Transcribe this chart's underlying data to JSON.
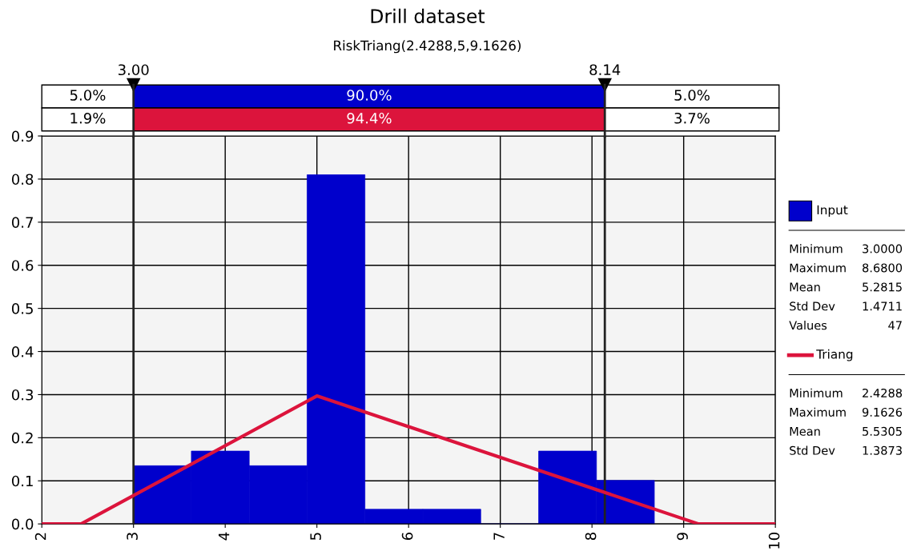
{
  "chart_data": [
    {
      "type": "histogram",
      "title": "Drill dataset",
      "subtitle": "RiskTriang(2.4288,5,9.1626)",
      "bins": [
        3.0,
        3.631,
        4.262,
        4.893,
        5.524,
        6.156,
        6.787,
        7.418,
        8.049,
        8.68
      ],
      "series": [
        {
          "name": "Input",
          "type": "histogram",
          "color": "#0000cc",
          "values": [
            0.135,
            0.169,
            0.135,
            0.81,
            0.034,
            0.034,
            0,
            0.169,
            0.101
          ]
        },
        {
          "name": "Triang",
          "type": "line",
          "color": "#dc143c",
          "x": [
            2,
            2.4288,
            5,
            9.1626,
            10
          ],
          "values": [
            0,
            0,
            0.297,
            0,
            0
          ]
        }
      ],
      "xlim": [
        2,
        10
      ],
      "xticks": [
        2,
        3,
        4,
        5,
        6,
        7,
        8,
        9,
        10
      ],
      "ylim": [
        0,
        0.9
      ],
      "yticks": [
        {
          "value": 0,
          "label": "0.0"
        },
        {
          "value": 0.1,
          "label": "0.1"
        },
        {
          "value": 0.2,
          "label": "0.2"
        },
        {
          "value": 0.3,
          "label": "0.3"
        },
        {
          "value": 0.4,
          "label": "0.4"
        },
        {
          "value": 0.5,
          "label": "0.5"
        },
        {
          "value": 0.6,
          "label": "0.6"
        },
        {
          "value": 0.7,
          "label": "0.7"
        },
        {
          "value": 0.8,
          "label": "0.8"
        },
        {
          "value": 0.9,
          "label": "0.9"
        }
      ],
      "ref_lines": [
        {
          "axis": "x",
          "value": 3.0,
          "label": "3.00"
        },
        {
          "axis": "x",
          "value": 8.14,
          "label": "8.14"
        }
      ],
      "annotations": [
        "5.0%",
        "90.0%",
        "5.0%",
        "1.9%",
        "94.4%",
        "3.7%"
      ],
      "grid": true,
      "legend": "right"
    },
    {
      "type": "other",
      "annotations": [
        "Minimum",
        "3.0000",
        "Maximum",
        "8.6800",
        "Mean",
        "5.2815",
        "Std Dev",
        "1.4711",
        "Values",
        "47"
      ]
    },
    {
      "type": "other",
      "annotations": [
        "Minimum",
        "2.4288",
        "Maximum",
        "9.1626",
        "Mean",
        "5.5305",
        "Std Dev",
        "1.3873"
      ]
    }
  ]
}
